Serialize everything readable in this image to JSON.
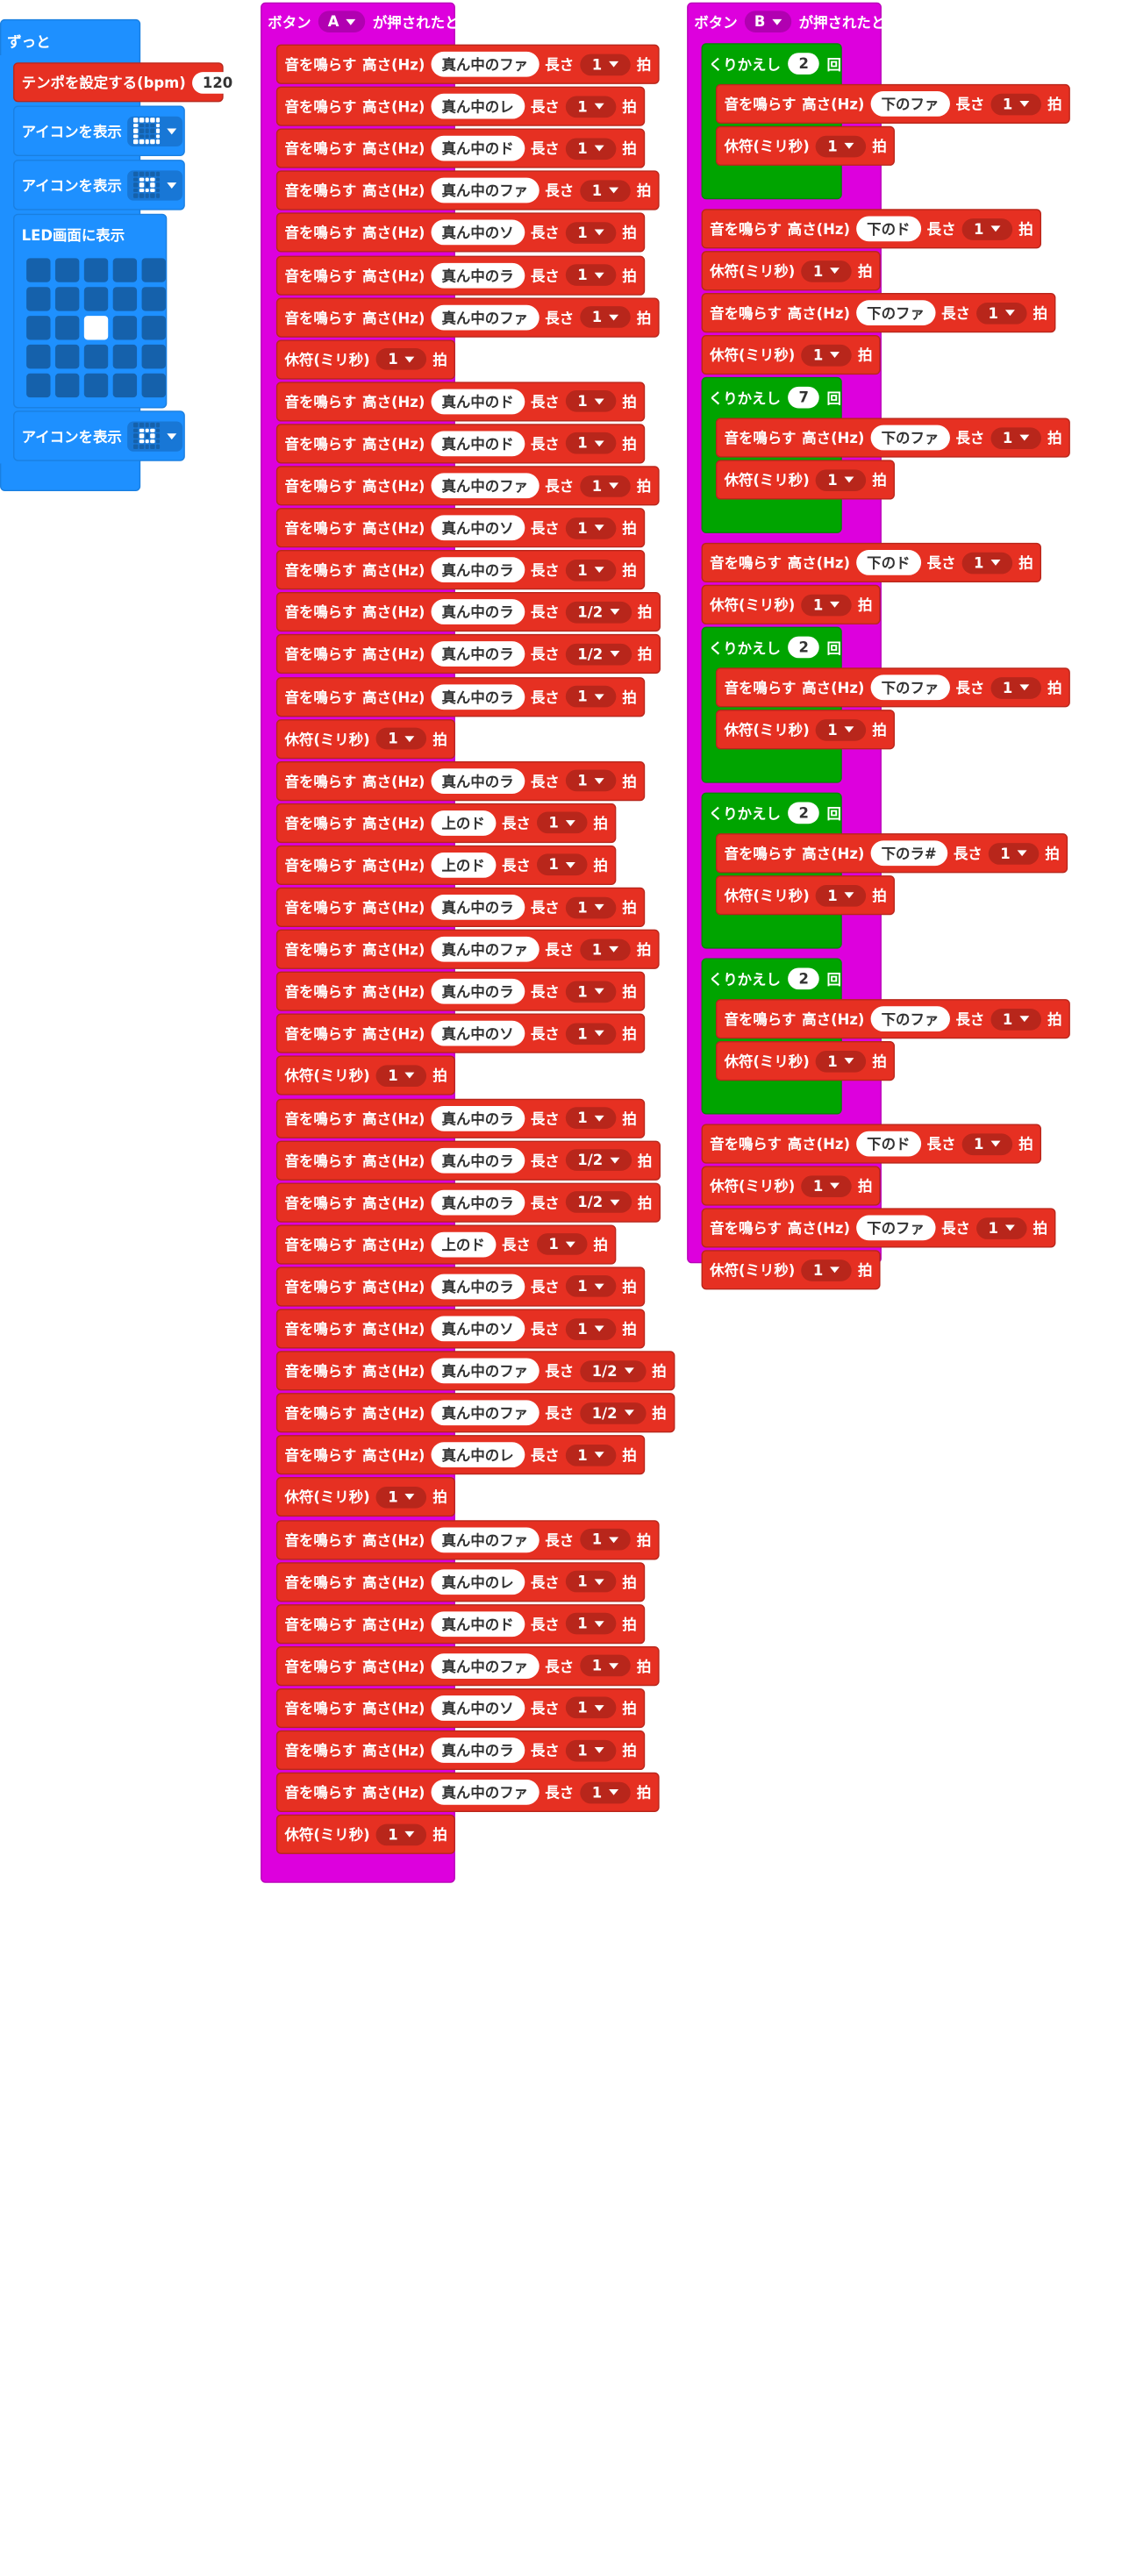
{
  "colors": {
    "music": "#e63022",
    "basic": "#1e90ff",
    "loops": "#00a400",
    "input": "#dd00dd"
  },
  "forever": {
    "label": "ずっと",
    "tempo": {
      "label": "テンポを設定する(bpm)",
      "value": "120"
    },
    "show_icon_label": "アイコンを表示",
    "show_leds_label": "LED画面に表示",
    "led_on": [
      12
    ]
  },
  "button_a": {
    "label1": "ボタン",
    "button": "A",
    "label2": "が押されたとき"
  },
  "button_b": {
    "label1": "ボタン",
    "button": "B",
    "label2": "が押されたとき"
  },
  "labels": {
    "play": "音を鳴らす",
    "pitch": "高さ(Hz)",
    "length": "長さ",
    "beat": "拍",
    "rest": "休符(ミリ秒)",
    "repeat": "くりかえし",
    "times": "回"
  },
  "script_a": [
    {
      "t": "play",
      "n": "真ん中のファ",
      "b": "1"
    },
    {
      "t": "play",
      "n": "真ん中のレ",
      "b": "1"
    },
    {
      "t": "play",
      "n": "真ん中のド",
      "b": "1"
    },
    {
      "t": "play",
      "n": "真ん中のファ",
      "b": "1"
    },
    {
      "t": "play",
      "n": "真ん中のソ",
      "b": "1"
    },
    {
      "t": "play",
      "n": "真ん中のラ",
      "b": "1"
    },
    {
      "t": "play",
      "n": "真ん中のファ",
      "b": "1"
    },
    {
      "t": "rest",
      "b": "1"
    },
    {
      "t": "play",
      "n": "真ん中のド",
      "b": "1"
    },
    {
      "t": "play",
      "n": "真ん中のド",
      "b": "1"
    },
    {
      "t": "play",
      "n": "真ん中のファ",
      "b": "1"
    },
    {
      "t": "play",
      "n": "真ん中のソ",
      "b": "1"
    },
    {
      "t": "play",
      "n": "真ん中のラ",
      "b": "1"
    },
    {
      "t": "play",
      "n": "真ん中のラ",
      "b": "1/2"
    },
    {
      "t": "play",
      "n": "真ん中のラ",
      "b": "1/2"
    },
    {
      "t": "play",
      "n": "真ん中のラ",
      "b": "1"
    },
    {
      "t": "rest",
      "b": "1"
    },
    {
      "t": "play",
      "n": "真ん中のラ",
      "b": "1"
    },
    {
      "t": "play",
      "n": "上のド",
      "b": "1"
    },
    {
      "t": "play",
      "n": "上のド",
      "b": "1"
    },
    {
      "t": "play",
      "n": "真ん中のラ",
      "b": "1"
    },
    {
      "t": "play",
      "n": "真ん中のファ",
      "b": "1"
    },
    {
      "t": "play",
      "n": "真ん中のラ",
      "b": "1"
    },
    {
      "t": "play",
      "n": "真ん中のソ",
      "b": "1"
    },
    {
      "t": "rest",
      "b": "1"
    },
    {
      "t": "play",
      "n": "真ん中のラ",
      "b": "1"
    },
    {
      "t": "play",
      "n": "真ん中のラ",
      "b": "1/2"
    },
    {
      "t": "play",
      "n": "真ん中のラ",
      "b": "1/2"
    },
    {
      "t": "play",
      "n": "上のド",
      "b": "1"
    },
    {
      "t": "play",
      "n": "真ん中のラ",
      "b": "1"
    },
    {
      "t": "play",
      "n": "真ん中のソ",
      "b": "1"
    },
    {
      "t": "play",
      "n": "真ん中のファ",
      "b": "1/2"
    },
    {
      "t": "play",
      "n": "真ん中のファ",
      "b": "1/2"
    },
    {
      "t": "play",
      "n": "真ん中のレ",
      "b": "1"
    },
    {
      "t": "rest",
      "b": "1"
    },
    {
      "t": "play",
      "n": "真ん中のファ",
      "b": "1"
    },
    {
      "t": "play",
      "n": "真ん中のレ",
      "b": "1"
    },
    {
      "t": "play",
      "n": "真ん中のド",
      "b": "1"
    },
    {
      "t": "play",
      "n": "真ん中のファ",
      "b": "1"
    },
    {
      "t": "play",
      "n": "真ん中のソ",
      "b": "1"
    },
    {
      "t": "play",
      "n": "真ん中のラ",
      "b": "1"
    },
    {
      "t": "play",
      "n": "真ん中のファ",
      "b": "1"
    },
    {
      "t": "rest",
      "b": "1"
    }
  ],
  "script_b": [
    {
      "t": "repeat",
      "count": "2",
      "body": [
        {
          "t": "play",
          "n": "下のファ",
          "b": "1"
        },
        {
          "t": "rest",
          "b": "1"
        }
      ]
    },
    {
      "t": "play",
      "n": "下のド",
      "b": "1"
    },
    {
      "t": "rest",
      "b": "1"
    },
    {
      "t": "play",
      "n": "下のファ",
      "b": "1"
    },
    {
      "t": "rest",
      "b": "1"
    },
    {
      "t": "repeat",
      "count": "7",
      "body": [
        {
          "t": "play",
          "n": "下のファ",
          "b": "1"
        },
        {
          "t": "rest",
          "b": "1"
        }
      ]
    },
    {
      "t": "play",
      "n": "下のド",
      "b": "1"
    },
    {
      "t": "rest",
      "b": "1"
    },
    {
      "t": "repeat",
      "count": "2",
      "body": [
        {
          "t": "play",
          "n": "下のファ",
          "b": "1"
        },
        {
          "t": "rest",
          "b": "1"
        }
      ]
    },
    {
      "t": "repeat",
      "count": "2",
      "body": [
        {
          "t": "play",
          "n": "下のラ#",
          "b": "1"
        },
        {
          "t": "rest",
          "b": "1"
        }
      ]
    },
    {
      "t": "repeat",
      "count": "2",
      "body": [
        {
          "t": "play",
          "n": "下のファ",
          "b": "1"
        },
        {
          "t": "rest",
          "b": "1"
        }
      ]
    },
    {
      "t": "play",
      "n": "下のド",
      "b": "1"
    },
    {
      "t": "rest",
      "b": "1"
    },
    {
      "t": "play",
      "n": "下のファ",
      "b": "1"
    },
    {
      "t": "rest",
      "b": "1"
    }
  ]
}
